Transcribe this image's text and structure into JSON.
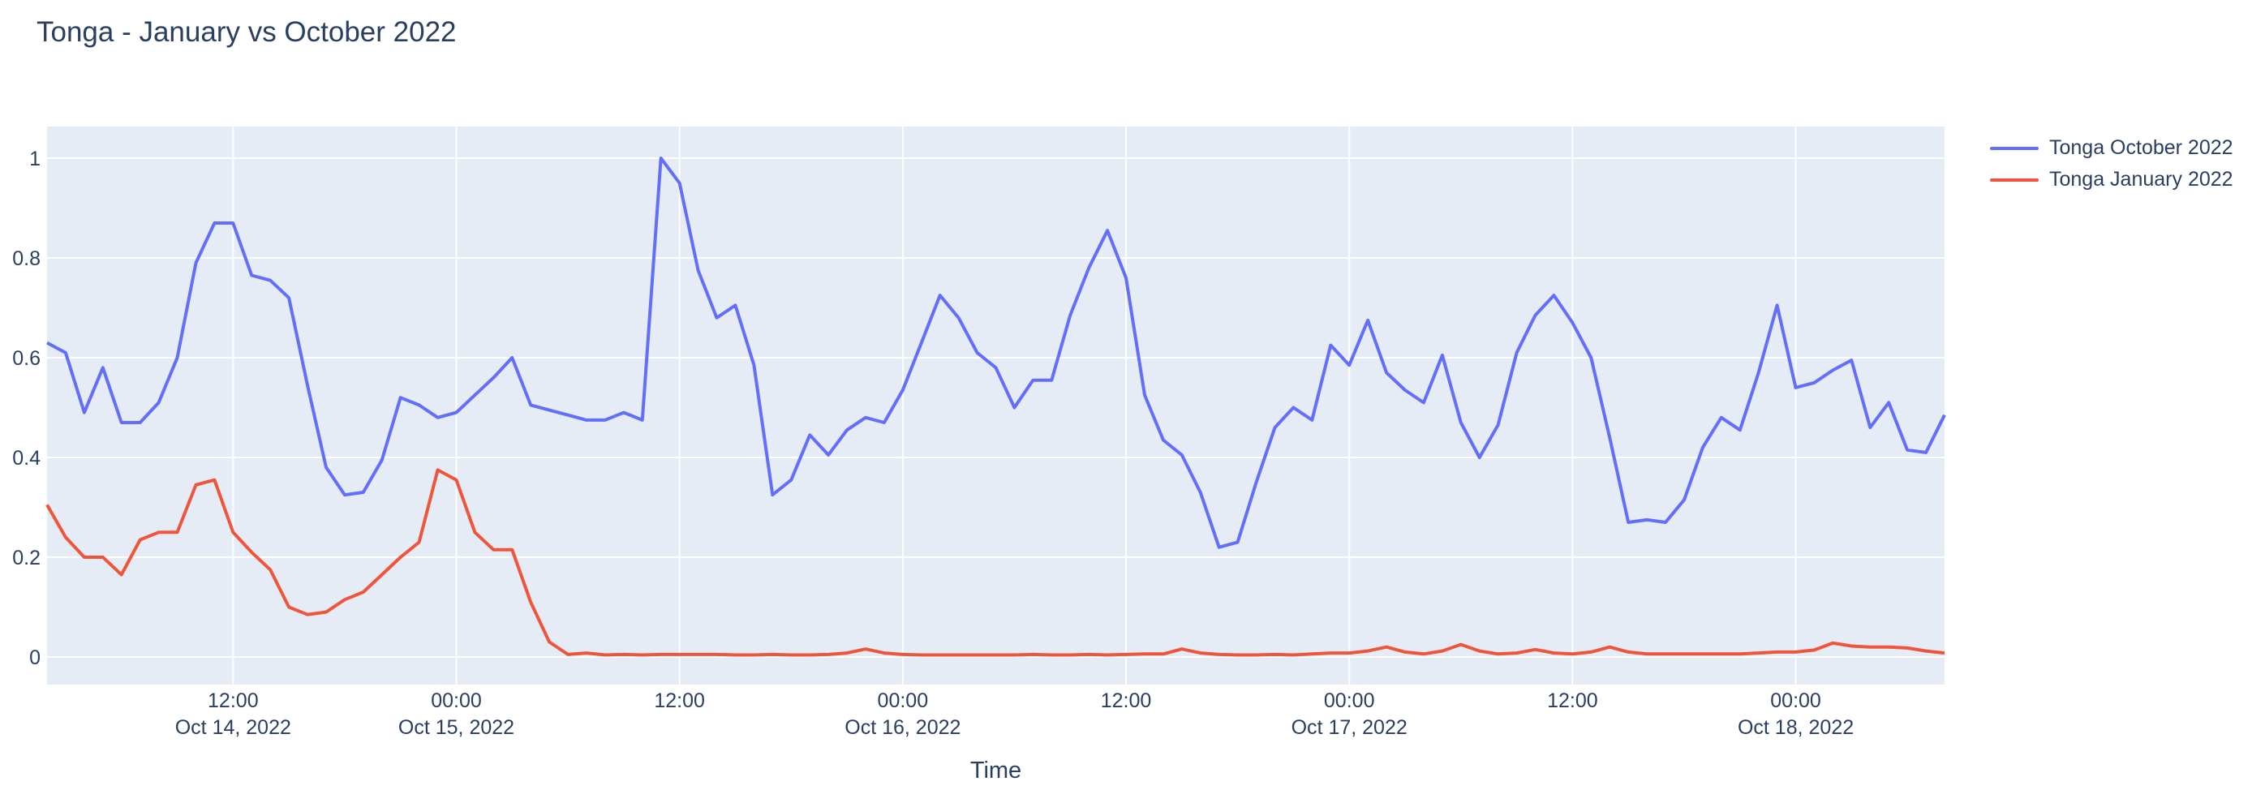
{
  "title": "Tonga - January vs October 2022",
  "axis": {
    "x_title": "Time"
  },
  "style": {
    "plot_bg": "#E5ECF6",
    "paper_bg": "#FFFFFF",
    "grid_color": "#FFFFFF",
    "font_color": "#2a3f5f",
    "series_colors": [
      "#636EFA",
      "#EF553B"
    ]
  },
  "chart_data": {
    "type": "line",
    "title": "Tonga - January vs October 2022",
    "xlabel": "Time",
    "ylabel": "",
    "x_start": "2022-10-14 02:00",
    "x_interval_hours": 1,
    "n_points": 103,
    "ylim": [
      -0.057,
      1.063
    ],
    "grid": true,
    "legend_position": "outside-top-right",
    "y_ticks": [
      {
        "v": 0,
        "label": "0"
      },
      {
        "v": 0.2,
        "label": "0.2"
      },
      {
        "v": 0.4,
        "label": "0.4"
      },
      {
        "v": 0.6,
        "label": "0.6"
      },
      {
        "v": 0.8,
        "label": "0.8"
      },
      {
        "v": 1,
        "label": "1"
      }
    ],
    "x_ticks": [
      {
        "i": 10,
        "time": "12:00",
        "date": "Oct 14, 2022"
      },
      {
        "i": 22,
        "time": "00:00",
        "date": "Oct 15, 2022"
      },
      {
        "i": 34,
        "time": "12:00",
        "date": ""
      },
      {
        "i": 46,
        "time": "00:00",
        "date": "Oct 16, 2022"
      },
      {
        "i": 58,
        "time": "12:00",
        "date": ""
      },
      {
        "i": 70,
        "time": "00:00",
        "date": "Oct 17, 2022"
      },
      {
        "i": 82,
        "time": "12:00",
        "date": ""
      },
      {
        "i": 94,
        "time": "00:00",
        "date": "Oct 18, 2022"
      }
    ],
    "series": [
      {
        "name": "Tonga October 2022",
        "color": "#636EFA",
        "values": [
          0.63,
          0.61,
          0.49,
          0.58,
          0.47,
          0.47,
          0.51,
          0.6,
          0.79,
          0.87,
          0.87,
          0.765,
          0.755,
          0.72,
          0.545,
          0.38,
          0.325,
          0.33,
          0.395,
          0.52,
          0.505,
          0.48,
          0.49,
          0.525,
          0.56,
          0.6,
          0.505,
          0.495,
          0.485,
          0.475,
          0.475,
          0.49,
          0.475,
          1.0,
          0.95,
          0.775,
          0.68,
          0.705,
          0.585,
          0.325,
          0.355,
          0.445,
          0.405,
          0.455,
          0.48,
          0.47,
          0.535,
          0.63,
          0.725,
          0.68,
          0.61,
          0.58,
          0.5,
          0.555,
          0.555,
          0.685,
          0.78,
          0.855,
          0.76,
          0.525,
          0.435,
          0.405,
          0.33,
          0.22,
          0.23,
          0.35,
          0.46,
          0.5,
          0.475,
          0.625,
          0.585,
          0.675,
          0.57,
          0.535,
          0.51,
          0.605,
          0.47,
          0.4,
          0.465,
          0.61,
          0.685,
          0.725,
          0.67,
          0.6,
          0.44,
          0.27,
          0.275,
          0.27,
          0.315,
          0.42,
          0.48,
          0.455,
          0.57,
          0.705,
          0.54,
          0.55,
          0.575,
          0.595,
          0.46,
          0.51,
          0.415,
          0.41,
          0.485
        ]
      },
      {
        "name": "Tonga January 2022",
        "color": "#EF553B",
        "values": [
          0.305,
          0.24,
          0.2,
          0.2,
          0.165,
          0.235,
          0.25,
          0.25,
          0.345,
          0.355,
          0.25,
          0.21,
          0.175,
          0.1,
          0.085,
          0.09,
          0.115,
          0.13,
          0.165,
          0.2,
          0.23,
          0.375,
          0.355,
          0.25,
          0.215,
          0.215,
          0.11,
          0.03,
          0.005,
          0.008,
          0.004,
          0.005,
          0.004,
          0.005,
          0.005,
          0.005,
          0.005,
          0.004,
          0.004,
          0.005,
          0.004,
          0.004,
          0.005,
          0.008,
          0.016,
          0.008,
          0.005,
          0.004,
          0.004,
          0.004,
          0.004,
          0.004,
          0.004,
          0.005,
          0.004,
          0.004,
          0.005,
          0.004,
          0.005,
          0.006,
          0.006,
          0.016,
          0.008,
          0.005,
          0.004,
          0.004,
          0.005,
          0.004,
          0.006,
          0.008,
          0.008,
          0.012,
          0.02,
          0.01,
          0.006,
          0.012,
          0.025,
          0.012,
          0.006,
          0.008,
          0.015,
          0.008,
          0.006,
          0.01,
          0.02,
          0.01,
          0.006,
          0.006,
          0.006,
          0.006,
          0.006,
          0.006,
          0.008,
          0.01,
          0.01,
          0.014,
          0.028,
          0.022,
          0.02,
          0.02,
          0.018,
          0.012,
          0.008
        ]
      }
    ]
  }
}
